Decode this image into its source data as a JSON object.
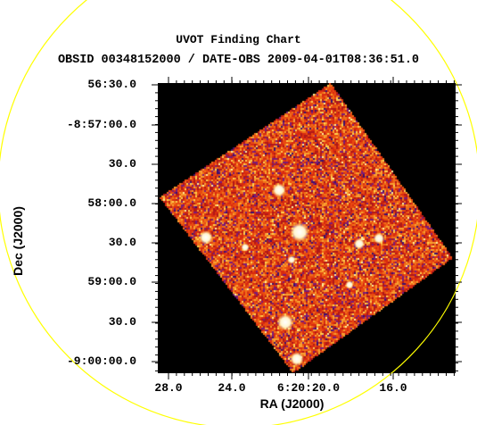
{
  "chart": {
    "title": "UVOT Finding Chart",
    "subtitle": "OBSID 00348152000 / DATE-OBS 2009-04-01T08:36:51.0",
    "xlabel": "RA (J2000)",
    "ylabel": "Dec (J2000)",
    "yticks": [
      "56:30.0",
      "-8:57:00.0",
      "30.0",
      "58:00.0",
      "30.0",
      "59:00.0",
      "30.0",
      "-9:00:00.0"
    ],
    "xticks": [
      "28.0",
      "24.0",
      "6:20:20.0",
      "16.0"
    ]
  },
  "colors": {
    "circle": "#ffff00",
    "background": "#000000",
    "noise_low": "#5a1a8a",
    "noise_mid": "#e03010",
    "noise_high": "#ffd040",
    "sources": "#ffffff"
  }
}
